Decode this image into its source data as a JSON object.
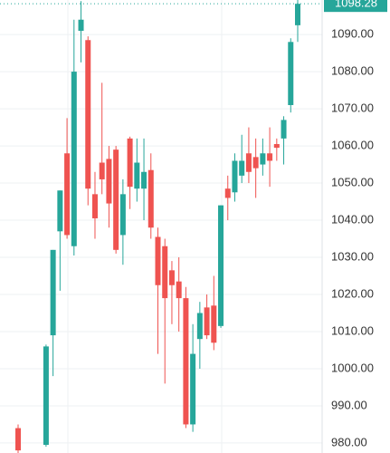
{
  "chart_data": {
    "type": "candlestick",
    "categories": [
      null,
      null,
      null,
      null,
      null,
      null,
      null,
      null,
      null,
      null,
      null,
      null,
      null,
      null,
      null,
      null,
      null,
      null,
      null,
      null,
      null,
      null,
      null,
      null,
      null,
      null,
      null,
      null,
      null,
      null,
      null,
      null,
      null,
      null,
      null,
      null,
      null,
      null,
      null,
      null,
      null
    ],
    "open": [
      984,
      null,
      null,
      null,
      979.5,
      1009,
      1037,
      1058,
      1033,
      1091,
      1088.5,
      1047,
      1055.5,
      1056.5,
      1059,
      1036,
      1062,
      1048.5,
      1048.5,
      1053.5,
      1035.5,
      1033,
      1026.5,
      1023.5,
      1019,
      985,
      1008,
      1016.5,
      1017,
      1011.5,
      1048.5,
      1047.5,
      1052,
      1058,
      1057,
      1055,
      1058,
      1060.5,
      1062,
      1071,
      1092.5
    ],
    "high": [
      985,
      null,
      null,
      null,
      1006.5,
      1032,
      1048,
      1067.5,
      1094,
      1099,
      1089.5,
      1053,
      1077,
      1060,
      1060,
      1051,
      1062.5,
      1062,
      1062,
      1058,
      1038,
      1035,
      1029,
      1030,
      1022,
      1012,
      1018,
      1020,
      1025,
      1044,
      1052,
      1058,
      1063,
      1065,
      1062,
      1062,
      1065,
      1062,
      1068,
      1089,
      1100
    ],
    "low": [
      976,
      null,
      null,
      null,
      979,
      998,
      1021,
      1035,
      1030.5,
      1082.5,
      1044,
      1035,
      1047,
      1038,
      1031,
      1028,
      1043,
      1045,
      1040,
      1035,
      1004,
      996,
      1012,
      1010,
      984,
      983,
      1000,
      1008,
      1005,
      1011,
      1040,
      1045,
      1050,
      1050,
      1046,
      1052,
      1049,
      1056,
      1055,
      1069,
      1088
    ],
    "close": [
      978,
      null,
      null,
      null,
      1006,
      1032,
      1048,
      1036,
      1080,
      1094,
      1048.5,
      1040.5,
      1051,
      1044.5,
      1032,
      1047,
      1049,
      1055.5,
      1053,
      1038,
      1022.5,
      1019,
      1022.5,
      1019,
      985,
      1004,
      1015,
      1009,
      1007,
      1044,
      1046,
      1056,
      1056,
      1053,
      1054,
      1058,
      1056,
      1059.5,
      1067,
      1088,
      1098.28
    ],
    "up_color": "#26a69a",
    "down_color": "#ef5350",
    "last_price": 1098.28,
    "ylim": [
      977.3,
      1099.3
    ],
    "yticks": [
      {
        "value": 980,
        "label": "980.00"
      },
      {
        "value": 990,
        "label": "990.00"
      },
      {
        "value": 1000,
        "label": "1000.00"
      },
      {
        "value": 1010,
        "label": "1010.00"
      },
      {
        "value": 1020,
        "label": "1020.00"
      },
      {
        "value": 1030,
        "label": "1030.00"
      },
      {
        "value": 1040,
        "label": "1040.00"
      },
      {
        "value": 1050,
        "label": "1050.00"
      },
      {
        "value": 1060,
        "label": "1060.00"
      },
      {
        "value": 1070,
        "label": "1070.00"
      },
      {
        "value": 1080,
        "label": "1080.00"
      },
      {
        "value": 1090,
        "label": "1090.00"
      }
    ],
    "grid": true
  }
}
